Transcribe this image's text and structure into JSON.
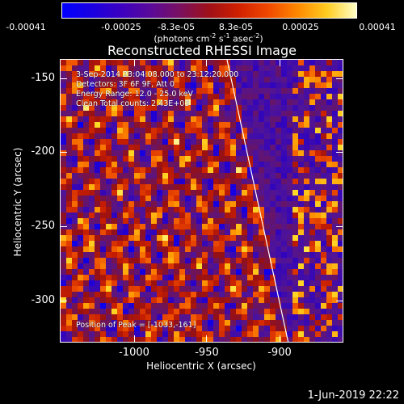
{
  "colorbar": {
    "tick_labels": [
      "-0.00041",
      "-0.00025",
      "-8.3e-05",
      "8.3e-05",
      "0.00025",
      "0.00041"
    ],
    "units_main": "(photons cm",
    "units_exp1": "-2",
    "units_mid1": " s",
    "units_exp2": "-1",
    "units_mid2": " asec",
    "units_exp3": "-2",
    "units_end": ")",
    "range": [
      -0.00041,
      0.00041
    ]
  },
  "title": "Reconstructed RHESSI Image",
  "info": {
    "line1": "3-Sep-2014 23:04:08.000 to 23:12:20.000",
    "line2": "Detectors: 3F 6F 9F, Att 0",
    "line3": "Energy Range: 12.0 - 25.0 keV",
    "line4": "Clean    Total counts: 2.43E+03"
  },
  "peak_label": "Position of Peak = [-1033,-161]",
  "axes": {
    "x_label": "Heliocentric X (arcsec)",
    "y_label": "Heliocentric Y (arcsec)",
    "x_ticks": [
      "-1000",
      "-950",
      "-900"
    ],
    "y_ticks": [
      "-150",
      "-200",
      "-250",
      "-300"
    ],
    "x_range": [
      -1048,
      -873
    ],
    "y_range": [
      -322,
      -141
    ]
  },
  "timestamp": "1-Jun-2019 22:22",
  "colors": {
    "background": "#000000",
    "foreground": "#ffffff",
    "limb": "#ffffff"
  }
}
